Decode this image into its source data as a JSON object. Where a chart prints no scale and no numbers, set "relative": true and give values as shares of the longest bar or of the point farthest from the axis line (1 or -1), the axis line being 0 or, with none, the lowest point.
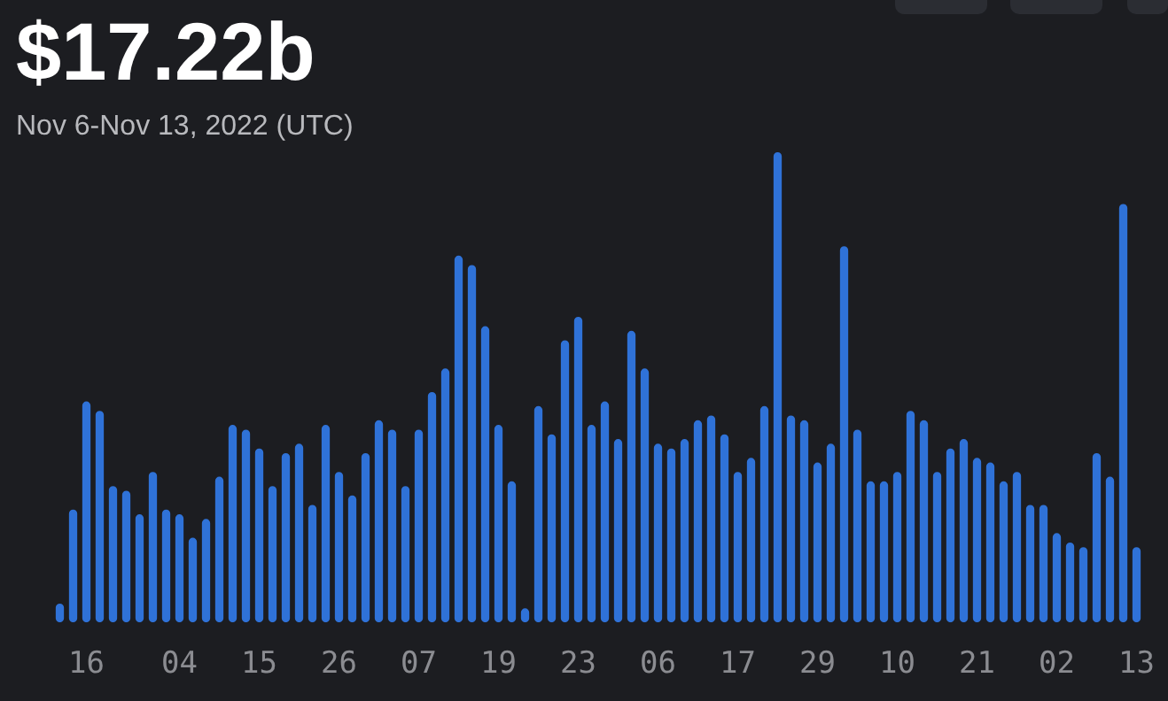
{
  "chart_data": {
    "type": "bar",
    "title": "$17.22b",
    "subtitle": "Nov 6-Nov 13, 2022 (UTC)",
    "relative": true,
    "color": "#2f72d8",
    "categories": [
      null,
      null,
      "16",
      null,
      null,
      null,
      null,
      null,
      null,
      "04",
      null,
      null,
      null,
      null,
      null,
      "15",
      null,
      null,
      null,
      null,
      null,
      "26",
      null,
      null,
      null,
      null,
      null,
      "07",
      null,
      null,
      null,
      null,
      null,
      "19",
      null,
      null,
      null,
      null,
      null,
      "23",
      null,
      null,
      null,
      null,
      null,
      "06",
      null,
      null,
      null,
      null,
      null,
      "17",
      null,
      null,
      null,
      null,
      null,
      "29",
      null,
      null,
      null,
      null,
      null,
      "10",
      null,
      null,
      null,
      null,
      null,
      "21",
      null,
      null,
      null,
      null,
      null,
      "02",
      null,
      null,
      null,
      null,
      null,
      "13"
    ],
    "values": [
      0.04,
      0.24,
      0.47,
      0.45,
      0.29,
      0.28,
      0.23,
      0.32,
      0.24,
      0.23,
      0.18,
      0.22,
      0.31,
      0.42,
      0.41,
      0.37,
      0.29,
      0.36,
      0.38,
      0.25,
      0.42,
      0.32,
      0.27,
      0.36,
      0.43,
      0.41,
      0.29,
      0.41,
      0.49,
      0.54,
      0.78,
      0.76,
      0.63,
      0.42,
      0.3,
      0.03,
      0.46,
      0.4,
      0.6,
      0.65,
      0.42,
      0.47,
      0.39,
      0.62,
      0.54,
      0.38,
      0.37,
      0.39,
      0.43,
      0.44,
      0.4,
      0.32,
      0.35,
      0.46,
      1,
      0.44,
      0.43,
      0.34,
      0.38,
      0.8,
      0.41,
      0.3,
      0.3,
      0.32,
      0.45,
      0.43,
      0.32,
      0.37,
      0.39,
      0.35,
      0.34,
      0.3,
      0.32,
      0.25,
      0.25,
      0.19,
      0.17,
      0.16,
      0.36,
      0.31,
      0.89,
      0.16
    ]
  }
}
